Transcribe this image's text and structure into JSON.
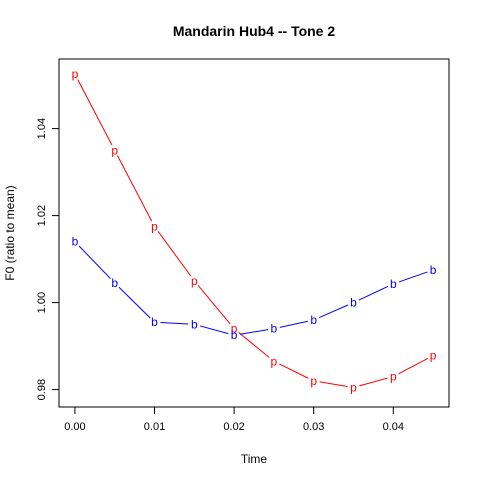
{
  "chart_data": {
    "type": "line",
    "title": "Mandarin Hub4 -- Tone 2",
    "xlabel": "Time",
    "ylabel": "F0 (ratio to mean)",
    "xlim": [
      -0.002,
      0.047
    ],
    "ylim": [
      0.976,
      1.056
    ],
    "xticks": [
      "0.00",
      "0.01",
      "0.02",
      "0.03",
      "0.04"
    ],
    "yticks": [
      "0.98",
      "1.00",
      "1.02",
      "1.04"
    ],
    "grid": false,
    "legend": "none",
    "x": [
      0,
      0.005,
      0.01,
      0.015,
      0.02,
      0.025,
      0.03,
      0.035,
      0.04,
      0.045
    ],
    "series": [
      {
        "marker": "p",
        "color": "#ff0000",
        "values": [
          1.0525,
          1.035,
          1.0175,
          1.005,
          0.994,
          0.9865,
          0.982,
          0.9805,
          0.983,
          0.9878
        ]
      },
      {
        "marker": "b",
        "color": "#0000ff",
        "values": [
          1.014,
          1.0045,
          0.9955,
          0.995,
          0.9925,
          0.994,
          0.996,
          1.0,
          1.0043,
          1.0075
        ]
      }
    ]
  }
}
